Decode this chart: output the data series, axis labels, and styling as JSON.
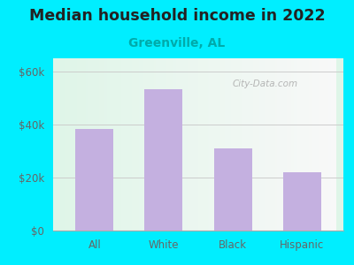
{
  "title": "Median household income in 2022",
  "subtitle": "Greenville, AL",
  "categories": [
    "All",
    "White",
    "Black",
    "Hispanic"
  ],
  "values": [
    38500,
    53500,
    31000,
    22000
  ],
  "bar_color": "#c4b0e0",
  "title_fontsize": 12.5,
  "title_fontweight": "bold",
  "title_color": "#222222",
  "subtitle_fontsize": 10,
  "subtitle_color": "#00aaaa",
  "tick_color": "#666666",
  "tick_fontsize": 8.5,
  "background_outer": "#00eeff",
  "ylim": [
    0,
    65000
  ],
  "yticks": [
    0,
    20000,
    40000,
    60000
  ],
  "ytick_labels": [
    "$0",
    "$20k",
    "$40k",
    "$60k"
  ],
  "watermark": "City-Data.com",
  "grid_color": "#cccccc",
  "plot_left_color": "#dff5e8",
  "plot_right_color": "#f8f8f8"
}
